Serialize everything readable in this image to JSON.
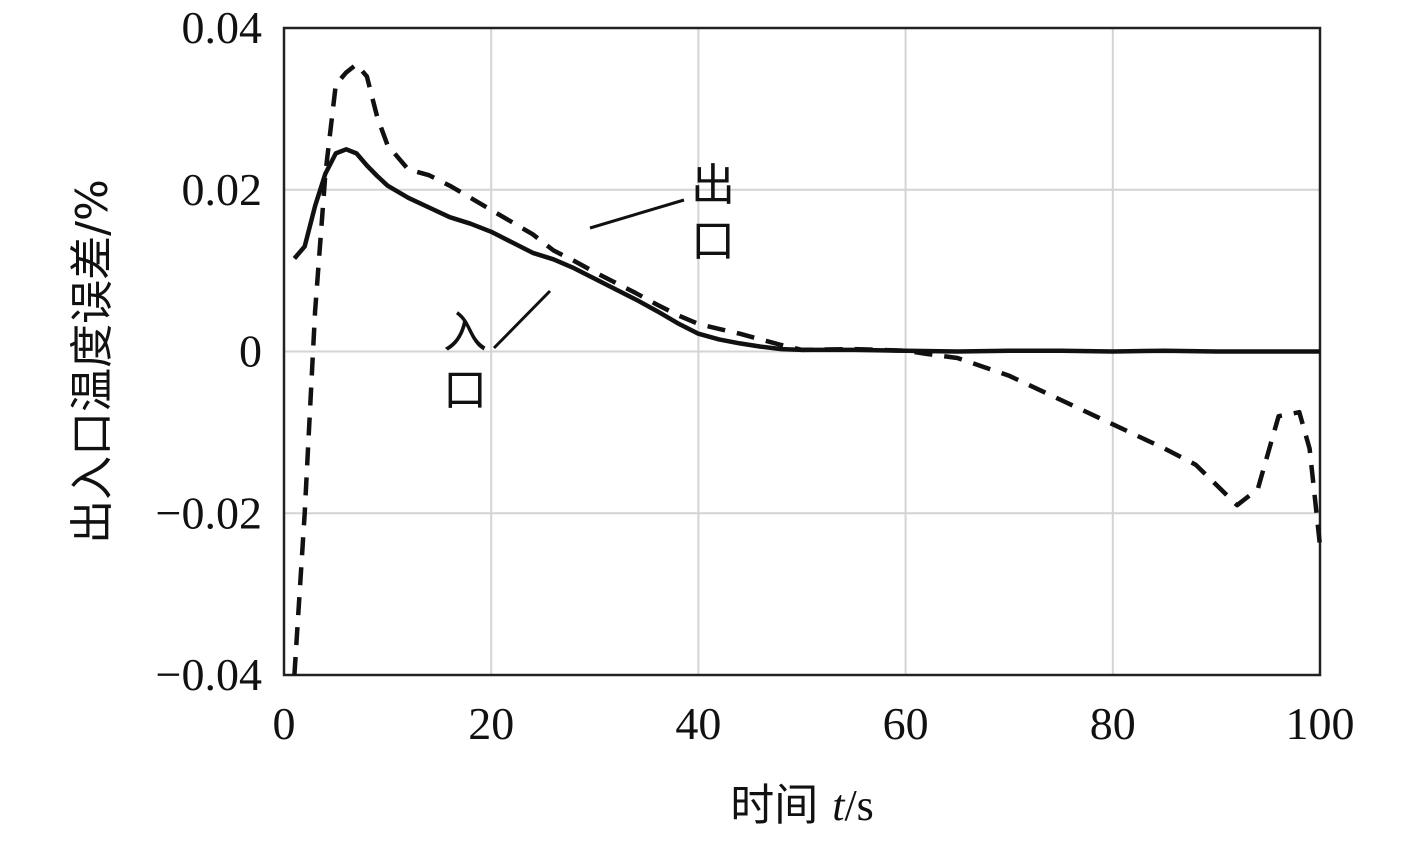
{
  "chart_data": {
    "type": "line",
    "xlabel": "时间 t/s",
    "xlabel_prefix": "时间 ",
    "xlabel_var": "t",
    "xlabel_unit": "/s",
    "ylabel": "出入口温度误差/%",
    "xlim": [
      0,
      100
    ],
    "ylim": [
      -0.04,
      0.04
    ],
    "xticks": [
      0,
      20,
      40,
      60,
      80,
      100
    ],
    "xtick_labels": [
      "0",
      "20",
      "40",
      "60",
      "80",
      "100"
    ],
    "yticks": [
      0.04,
      0.02,
      0,
      -0.02,
      -0.04
    ],
    "ytick_labels": [
      "0.04",
      "0.02",
      "0",
      "−0.02",
      "−0.04"
    ],
    "grid": true,
    "annotations": [
      {
        "text": "入口",
        "target": "inlet",
        "point": [
          20,
          0.0005
        ]
      },
      {
        "text": "出口",
        "target": "outlet",
        "point": [
          30,
          0.0155
        ]
      }
    ],
    "series": [
      {
        "id": "inlet",
        "style": "solid",
        "x": [
          1,
          2,
          3,
          4,
          5,
          6,
          7,
          8,
          9,
          10,
          12,
          14,
          16,
          18,
          20,
          22,
          24,
          26,
          28,
          30,
          32,
          34,
          36,
          38,
          40,
          42,
          44,
          46,
          48,
          50,
          55,
          60,
          65,
          70,
          75,
          80,
          85,
          90,
          95,
          100
        ],
        "y": [
          0.0115,
          0.013,
          0.018,
          0.022,
          0.0245,
          0.025,
          0.0245,
          0.023,
          0.0217,
          0.0205,
          0.019,
          0.0178,
          0.0166,
          0.0158,
          0.0148,
          0.0135,
          0.0122,
          0.0114,
          0.0103,
          0.009,
          0.0077,
          0.0064,
          0.005,
          0.0035,
          0.0022,
          0.0015,
          0.001,
          0.0006,
          0.0003,
          0.0002,
          0.0002,
          0.0001,
          0,
          0.0001,
          0.0001,
          0,
          0.0001,
          0,
          0,
          0
        ]
      },
      {
        "id": "outlet",
        "style": "dashed",
        "x": [
          1,
          2,
          3,
          4,
          5,
          6,
          7,
          8,
          9,
          10,
          12,
          14,
          16,
          18,
          20,
          22,
          24,
          26,
          28,
          30,
          32,
          34,
          36,
          38,
          40,
          42,
          44,
          46,
          48,
          50,
          55,
          60,
          62,
          65,
          70,
          75,
          80,
          85,
          88,
          90,
          92,
          94,
          96,
          98,
          99,
          100
        ],
        "y": [
          -0.04,
          -0.02,
          0.005,
          0.022,
          0.033,
          0.0345,
          0.0355,
          0.034,
          0.029,
          0.0255,
          0.0225,
          0.0218,
          0.0205,
          0.019,
          0.0175,
          0.016,
          0.0145,
          0.0125,
          0.0112,
          0.0098,
          0.0085,
          0.0072,
          0.0058,
          0.0045,
          0.0034,
          0.0028,
          0.0022,
          0.0015,
          0.0008,
          0.0002,
          0.0003,
          0.0001,
          -0.0003,
          -0.0008,
          -0.003,
          -0.006,
          -0.009,
          -0.012,
          -0.014,
          -0.0165,
          -0.019,
          -0.017,
          -0.008,
          -0.0075,
          -0.012,
          -0.024
        ]
      }
    ]
  }
}
